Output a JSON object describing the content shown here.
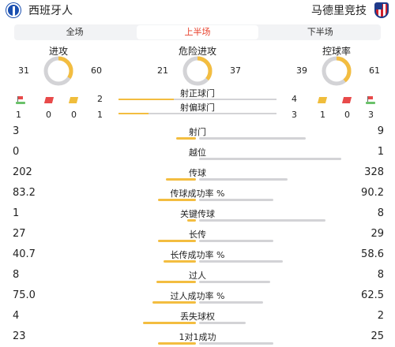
{
  "header": {
    "home_team": "西班牙人",
    "away_team": "马德里竞技",
    "home_badge_icon": "espanyol-badge-icon",
    "away_badge_icon": "atletico-badge-icon"
  },
  "tabs": [
    {
      "label": "全场",
      "active": false
    },
    {
      "label": "上半场",
      "active": true
    },
    {
      "label": "下半场",
      "active": false
    }
  ],
  "donuts": [
    {
      "title": "进攻",
      "home": "31",
      "away": "60"
    },
    {
      "title": "危险进攻",
      "home": "21",
      "away": "37"
    },
    {
      "title": "控球率",
      "home": "39",
      "away": "61"
    }
  ],
  "colors": {
    "home": "#f3bd40",
    "away": "#d3d3d6",
    "accent": "#e8432e"
  },
  "shots": {
    "on_target_label": "射正球门",
    "off_target_label": "射偏球门",
    "home_on": "2",
    "home_off": "1",
    "away_on": "4",
    "away_off": "3"
  },
  "cards": {
    "home": {
      "corners": "1",
      "red": "0",
      "yellow": "0"
    },
    "away": {
      "yellow": "1",
      "red": "0",
      "corners": "3"
    }
  },
  "stats": [
    {
      "label": "射门",
      "home": "3",
      "away": "9",
      "home_share": 0.25,
      "away_share": 0.75
    },
    {
      "label": "越位",
      "home": "0",
      "away": "1",
      "home_share": 0.0,
      "away_share": 1.0
    },
    {
      "label": "传球",
      "home": "202",
      "away": "328",
      "home_share": 0.38,
      "away_share": 0.62
    },
    {
      "label": "传球成功率 %",
      "home": "83.2",
      "away": "90.2",
      "home_share": 0.48,
      "away_share": 0.52
    },
    {
      "label": "关键传球",
      "home": "1",
      "away": "8",
      "home_share": 0.11,
      "away_share": 0.89
    },
    {
      "label": "长传",
      "home": "27",
      "away": "29",
      "home_share": 0.48,
      "away_share": 0.52
    },
    {
      "label": "长传成功率 %",
      "home": "40.7",
      "away": "58.6",
      "home_share": 0.41,
      "away_share": 0.59
    },
    {
      "label": "过人",
      "home": "8",
      "away": "8",
      "home_share": 0.5,
      "away_share": 0.5
    },
    {
      "label": "过人成功率 %",
      "home": "75.0",
      "away": "62.5",
      "home_share": 0.55,
      "away_share": 0.45
    },
    {
      "label": "丢失球权",
      "home": "4",
      "away": "2",
      "home_share": 0.67,
      "away_share": 0.33
    },
    {
      "label": "1对1成功",
      "home": "23",
      "away": "25",
      "home_share": 0.48,
      "away_share": 0.52
    }
  ]
}
